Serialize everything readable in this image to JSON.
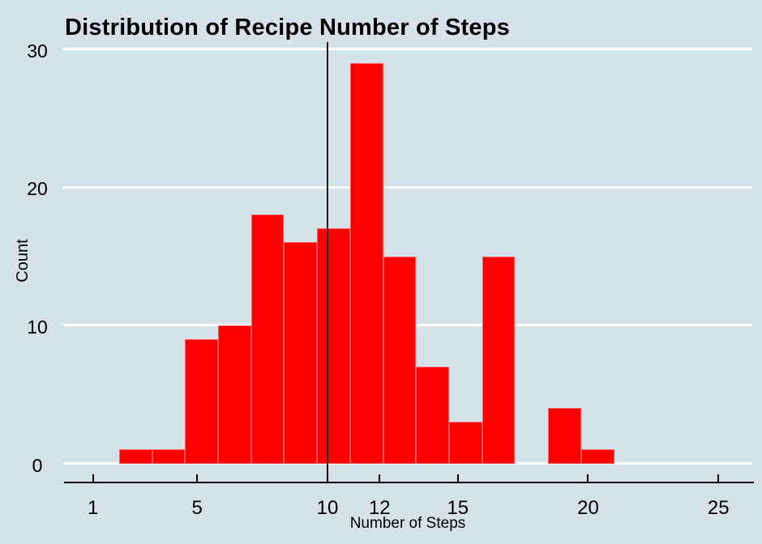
{
  "title": "Distribution of Recipe Number of Steps",
  "colors": {
    "background": "#d5e2ea",
    "bar": "#fe0000",
    "gridline": "#ffffff",
    "axis_line": "#000000",
    "reference_line": "#1a1a1a",
    "text": "#000000"
  },
  "chart_data": {
    "type": "bar",
    "subtype": "histogram",
    "title": "Distribution of Recipe Number of Steps",
    "xlabel": "Number of Steps",
    "ylabel": "Count",
    "bin_edges": [
      2,
      3.2667,
      4.5333,
      5.8,
      7.0667,
      8.3333,
      9.6,
      10.8667,
      12.1333,
      13.4,
      14.6667,
      15.9333,
      17.2,
      18.4667,
      19.7333,
      21
    ],
    "counts": [
      1,
      1,
      9,
      10,
      18,
      16,
      17,
      29,
      15,
      7,
      3,
      15,
      0,
      4,
      1
    ],
    "x_ticks": [
      1,
      5,
      10,
      12,
      15,
      20,
      25
    ],
    "y_ticks": [
      0,
      10,
      20,
      30
    ],
    "xlim": [
      -0.14,
      26.3
    ],
    "ylim": [
      0,
      30.3
    ],
    "reference_line_x": 10,
    "grid": "horizontal white gridlines at y ticks",
    "legend": "none"
  }
}
